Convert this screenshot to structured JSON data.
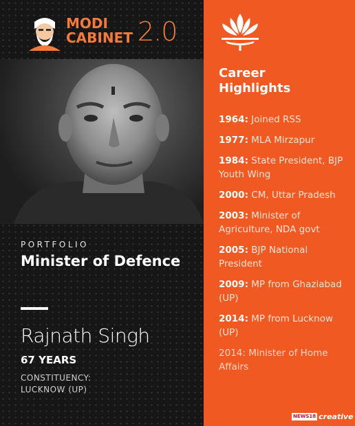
{
  "header": {
    "line1": "MODI",
    "line2": "CABINET",
    "version": "2.0"
  },
  "profile": {
    "portfolio_label": "PORTFOLIO",
    "portfolio_title": "Minister of Defence",
    "name": "Rajnath Singh",
    "age": "67 YEARS",
    "constituency_label": "CONSTITUENCY:",
    "constituency_value": "LUCKNOW (UP)"
  },
  "career": {
    "heading_line1": "Career",
    "heading_line2": "Highlights",
    "items": [
      {
        "year": "1964:",
        "text": " Joined RSS"
      },
      {
        "year": "1977:",
        "text": " MLA Mirzapur"
      },
      {
        "year": "1984:",
        "text": " State President, BJP Youth Wing"
      },
      {
        "year": "2000:",
        "text": " CM, Uttar Pradesh"
      },
      {
        "year": "2003:",
        "text": " Minister of Agriculture, NDA govt"
      },
      {
        "year": "2005:",
        "text": " BJP National President"
      },
      {
        "year": "2009:",
        "text": " MP from Ghaziabad (UP)"
      },
      {
        "year": "2014:",
        "text": " MP from Lucknow (UP)"
      },
      {
        "year": "",
        "text": "2014: Minister of Home Affairs"
      }
    ]
  },
  "brand": {
    "news": "NEWS18",
    "creative": "creative"
  },
  "colors": {
    "accent": "#f05a22",
    "logo": "#f47a3a",
    "dark": "#161616"
  }
}
